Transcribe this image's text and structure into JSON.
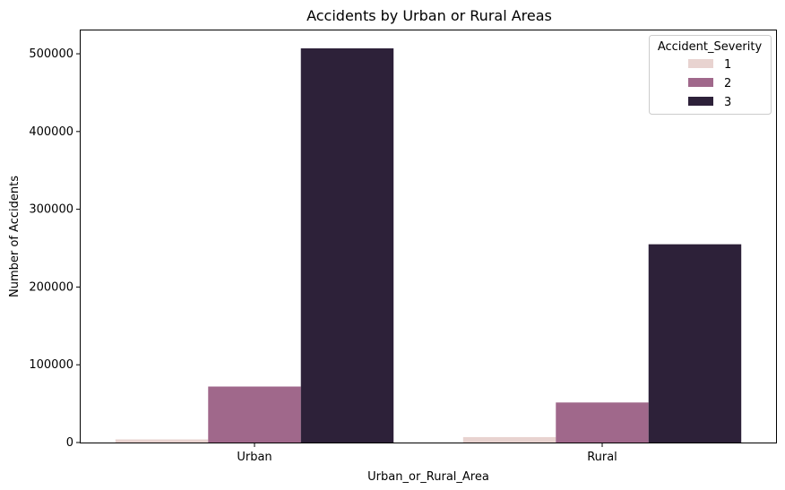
{
  "chart_data": {
    "type": "bar",
    "title": "Accidents by Urban or Rural Areas",
    "xlabel": "Urban_or_Rural_Area",
    "ylabel": "Number of Accidents",
    "categories": [
      "Urban",
      "Rural"
    ],
    "ylim": [
      0,
      530000
    ],
    "yticks": [
      0,
      100000,
      200000,
      300000,
      400000,
      500000
    ],
    "ytick_labels": [
      "0",
      "100000",
      "200000",
      "300000",
      "400000",
      "500000"
    ],
    "legend": {
      "title": "Accident_Severity",
      "placement": "top-right"
    },
    "grid": false,
    "series": [
      {
        "name": "1",
        "color": "#e8d3d0",
        "values": [
          4000,
          7000
        ]
      },
      {
        "name": "2",
        "color": "#a0688b",
        "values": [
          72000,
          51500
        ]
      },
      {
        "name": "3",
        "color": "#2d2139",
        "values": [
          507000,
          255000
        ]
      }
    ]
  }
}
